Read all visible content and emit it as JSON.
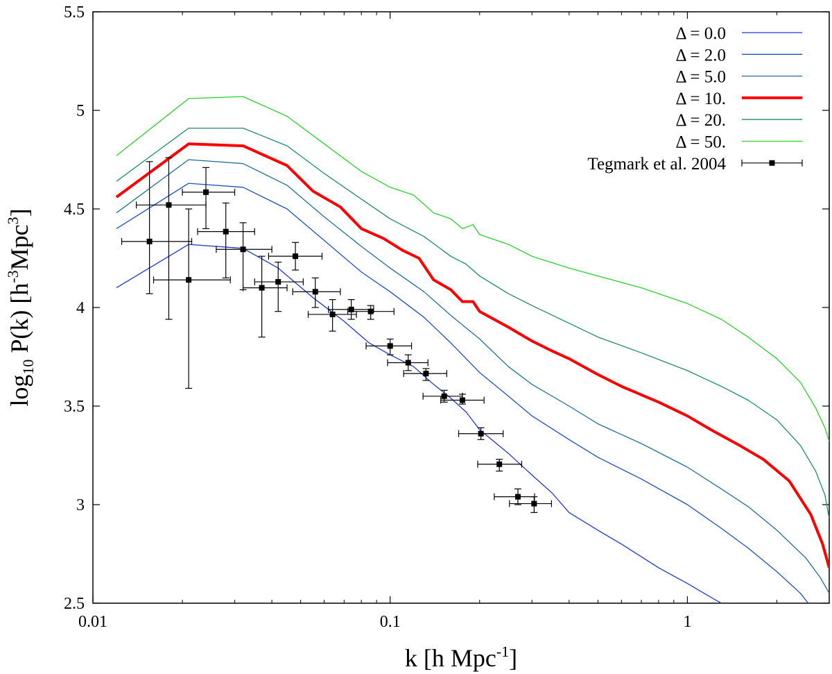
{
  "chart_data": {
    "type": "line",
    "xlabel_main": "k [h Mpc",
    "xlabel_sup": "-1",
    "xlabel_end": "]",
    "ylabel_a": "log",
    "ylabel_sub": "10",
    "ylabel_b": " P(k) [h",
    "ylabel_sup1": "-3",
    "ylabel_c": "Mpc",
    "ylabel_sup2": "3",
    "ylabel_d": "]",
    "x_scale": "log",
    "xlim": [
      0.01,
      3.0
    ],
    "ylim": [
      2.5,
      5.5
    ],
    "x_ticks": [
      {
        "value": 0.01,
        "label": "0.01"
      },
      {
        "value": 0.1,
        "label": "0.1"
      },
      {
        "value": 1,
        "label": "1"
      }
    ],
    "y_ticks": [
      {
        "value": 2.5,
        "label": "2.5"
      },
      {
        "value": 3.0,
        "label": "3"
      },
      {
        "value": 3.5,
        "label": "3.5"
      },
      {
        "value": 4.0,
        "label": "4"
      },
      {
        "value": 4.5,
        "label": "4.5"
      },
      {
        "value": 5.0,
        "label": "5"
      },
      {
        "value": 5.5,
        "label": "5.5"
      }
    ],
    "grid": false,
    "legend_position": "top-right",
    "series": [
      {
        "name": "Δ = 0.0",
        "color": "#1f35d6",
        "width": 1.3,
        "points": [
          [
            0.012,
            4.1
          ],
          [
            0.021,
            4.32
          ],
          [
            0.032,
            4.3
          ],
          [
            0.042,
            4.2
          ],
          [
            0.055,
            4.05
          ],
          [
            0.07,
            3.93
          ],
          [
            0.085,
            3.82
          ],
          [
            0.1,
            3.76
          ],
          [
            0.12,
            3.7
          ],
          [
            0.14,
            3.61
          ],
          [
            0.16,
            3.54
          ],
          [
            0.18,
            3.47
          ],
          [
            0.2,
            3.38
          ],
          [
            0.25,
            3.26
          ],
          [
            0.3,
            3.15
          ],
          [
            0.35,
            3.06
          ],
          [
            0.4,
            2.96
          ],
          [
            0.5,
            2.87
          ],
          [
            0.6,
            2.8
          ],
          [
            0.8,
            2.68
          ],
          [
            1.0,
            2.6
          ],
          [
            1.2,
            2.53
          ],
          [
            1.3,
            2.5
          ]
        ]
      },
      {
        "name": "Δ = 2.0",
        "color": "#1d4ec2",
        "width": 1.3,
        "points": [
          [
            0.012,
            4.4
          ],
          [
            0.021,
            4.63
          ],
          [
            0.032,
            4.61
          ],
          [
            0.045,
            4.5
          ],
          [
            0.06,
            4.34
          ],
          [
            0.08,
            4.18
          ],
          [
            0.1,
            4.08
          ],
          [
            0.13,
            3.95
          ],
          [
            0.16,
            3.82
          ],
          [
            0.2,
            3.67
          ],
          [
            0.25,
            3.55
          ],
          [
            0.3,
            3.45
          ],
          [
            0.4,
            3.33
          ],
          [
            0.5,
            3.24
          ],
          [
            0.7,
            3.13
          ],
          [
            1.0,
            3.0
          ],
          [
            1.3,
            2.88
          ],
          [
            1.6,
            2.78
          ],
          [
            2.0,
            2.66
          ],
          [
            2.4,
            2.55
          ],
          [
            2.55,
            2.5
          ]
        ]
      },
      {
        "name": "Δ = 5.0",
        "color": "#206f9a",
        "width": 1.3,
        "points": [
          [
            0.012,
            4.48
          ],
          [
            0.021,
            4.75
          ],
          [
            0.032,
            4.73
          ],
          [
            0.045,
            4.62
          ],
          [
            0.06,
            4.46
          ],
          [
            0.08,
            4.31
          ],
          [
            0.1,
            4.2
          ],
          [
            0.13,
            4.08
          ],
          [
            0.16,
            3.96
          ],
          [
            0.2,
            3.84
          ],
          [
            0.25,
            3.7
          ],
          [
            0.3,
            3.61
          ],
          [
            0.4,
            3.5
          ],
          [
            0.5,
            3.41
          ],
          [
            0.7,
            3.31
          ],
          [
            1.0,
            3.19
          ],
          [
            1.3,
            3.08
          ],
          [
            1.6,
            2.99
          ],
          [
            2.0,
            2.87
          ],
          [
            2.5,
            2.73
          ],
          [
            2.8,
            2.63
          ],
          [
            3.0,
            2.55
          ]
        ]
      },
      {
        "name": "Δ = 10.",
        "color": "#ff0000",
        "width": 4,
        "points": [
          [
            0.012,
            4.56
          ],
          [
            0.021,
            4.83
          ],
          [
            0.032,
            4.82
          ],
          [
            0.045,
            4.72
          ],
          [
            0.055,
            4.59
          ],
          [
            0.068,
            4.51
          ],
          [
            0.08,
            4.4
          ],
          [
            0.095,
            4.35
          ],
          [
            0.11,
            4.29
          ],
          [
            0.125,
            4.25
          ],
          [
            0.14,
            4.14
          ],
          [
            0.16,
            4.09
          ],
          [
            0.175,
            4.03
          ],
          [
            0.19,
            4.03
          ],
          [
            0.2,
            3.98
          ],
          [
            0.25,
            3.9
          ],
          [
            0.3,
            3.83
          ],
          [
            0.35,
            3.78
          ],
          [
            0.4,
            3.74
          ],
          [
            0.5,
            3.66
          ],
          [
            0.6,
            3.6
          ],
          [
            0.8,
            3.52
          ],
          [
            1.0,
            3.45
          ],
          [
            1.2,
            3.38
          ],
          [
            1.5,
            3.3
          ],
          [
            1.8,
            3.23
          ],
          [
            2.2,
            3.12
          ],
          [
            2.6,
            2.95
          ],
          [
            2.85,
            2.8
          ],
          [
            3.0,
            2.68
          ]
        ]
      },
      {
        "name": "Δ = 20.",
        "color": "#1d8a6e",
        "width": 1.3,
        "points": [
          [
            0.012,
            4.64
          ],
          [
            0.021,
            4.91
          ],
          [
            0.032,
            4.91
          ],
          [
            0.045,
            4.82
          ],
          [
            0.06,
            4.68
          ],
          [
            0.08,
            4.55
          ],
          [
            0.1,
            4.45
          ],
          [
            0.13,
            4.36
          ],
          [
            0.16,
            4.26
          ],
          [
            0.18,
            4.22
          ],
          [
            0.2,
            4.16
          ],
          [
            0.25,
            4.07
          ],
          [
            0.3,
            4.01
          ],
          [
            0.4,
            3.92
          ],
          [
            0.5,
            3.85
          ],
          [
            0.7,
            3.77
          ],
          [
            1.0,
            3.68
          ],
          [
            1.3,
            3.6
          ],
          [
            1.6,
            3.53
          ],
          [
            2.0,
            3.43
          ],
          [
            2.4,
            3.3
          ],
          [
            2.7,
            3.17
          ],
          [
            2.9,
            3.05
          ],
          [
            3.0,
            2.93
          ]
        ]
      },
      {
        "name": "Δ = 50.",
        "color": "#2ad12a",
        "width": 1.3,
        "points": [
          [
            0.012,
            4.77
          ],
          [
            0.021,
            5.06
          ],
          [
            0.032,
            5.07
          ],
          [
            0.045,
            4.97
          ],
          [
            0.06,
            4.83
          ],
          [
            0.08,
            4.69
          ],
          [
            0.1,
            4.61
          ],
          [
            0.12,
            4.57
          ],
          [
            0.14,
            4.48
          ],
          [
            0.16,
            4.45
          ],
          [
            0.175,
            4.4
          ],
          [
            0.19,
            4.42
          ],
          [
            0.2,
            4.37
          ],
          [
            0.25,
            4.32
          ],
          [
            0.3,
            4.26
          ],
          [
            0.4,
            4.2
          ],
          [
            0.5,
            4.16
          ],
          [
            0.7,
            4.1
          ],
          [
            1.0,
            4.02
          ],
          [
            1.3,
            3.94
          ],
          [
            1.6,
            3.85
          ],
          [
            2.0,
            3.74
          ],
          [
            2.4,
            3.62
          ],
          [
            2.7,
            3.49
          ],
          [
            2.9,
            3.39
          ],
          [
            3.0,
            3.32
          ]
        ]
      }
    ],
    "data_series": {
      "name": "Tegmark et al. 2004",
      "color": "#000000",
      "points": [
        {
          "k": 0.0155,
          "y": 4.335,
          "kerr": [
            0.0125,
            0.0215
          ],
          "yerr": [
            4.07,
            4.74
          ]
        },
        {
          "k": 0.018,
          "y": 4.52,
          "kerr": [
            0.014,
            0.024
          ],
          "yerr": [
            3.94,
            4.76
          ]
        },
        {
          "k": 0.021,
          "y": 4.14,
          "kerr": [
            0.016,
            0.029
          ],
          "yerr": [
            3.59,
            4.5
          ]
        },
        {
          "k": 0.024,
          "y": 4.585,
          "kerr": [
            0.02,
            0.03
          ],
          "yerr": [
            4.4,
            4.71
          ]
        },
        {
          "k": 0.028,
          "y": 4.385,
          "kerr": [
            0.0225,
            0.035
          ],
          "yerr": [
            4.15,
            4.53
          ]
        },
        {
          "k": 0.032,
          "y": 4.295,
          "kerr": [
            0.026,
            0.04
          ],
          "yerr": [
            4.09,
            4.43
          ]
        },
        {
          "k": 0.037,
          "y": 4.1,
          "kerr": [
            0.032,
            0.045
          ],
          "yerr": [
            3.85,
            4.26
          ]
        },
        {
          "k": 0.042,
          "y": 4.13,
          "kerr": [
            0.035,
            0.051
          ],
          "yerr": [
            3.98,
            4.23
          ]
        },
        {
          "k": 0.048,
          "y": 4.26,
          "kerr": [
            0.039,
            0.059
          ],
          "yerr": [
            4.19,
            4.33
          ]
        },
        {
          "k": 0.056,
          "y": 4.08,
          "kerr": [
            0.047,
            0.068
          ],
          "yerr": [
            4.0,
            4.15
          ]
        },
        {
          "k": 0.064,
          "y": 3.965,
          "kerr": [
            0.053,
            0.077
          ],
          "yerr": [
            3.88,
            4.04
          ]
        },
        {
          "k": 0.074,
          "y": 3.99,
          "kerr": [
            0.062,
            0.088
          ],
          "yerr": [
            3.94,
            4.04
          ]
        },
        {
          "k": 0.086,
          "y": 3.98,
          "kerr": [
            0.072,
            0.103
          ],
          "yerr": [
            3.94,
            4.01
          ]
        },
        {
          "k": 0.1,
          "y": 3.805,
          "kerr": [
            0.083,
            0.118
          ],
          "yerr": [
            3.76,
            3.84
          ]
        },
        {
          "k": 0.115,
          "y": 3.72,
          "kerr": [
            0.098,
            0.134
          ],
          "yerr": [
            3.68,
            3.76
          ]
        },
        {
          "k": 0.132,
          "y": 3.665,
          "kerr": [
            0.111,
            0.155
          ],
          "yerr": [
            3.63,
            3.69
          ]
        },
        {
          "k": 0.152,
          "y": 3.55,
          "kerr": [
            0.129,
            0.175
          ],
          "yerr": [
            3.52,
            3.58
          ]
        },
        {
          "k": 0.175,
          "y": 3.53,
          "kerr": [
            0.148,
            0.207
          ],
          "yerr": [
            3.51,
            3.56
          ]
        },
        {
          "k": 0.202,
          "y": 3.36,
          "kerr": [
            0.17,
            0.24
          ],
          "yerr": [
            3.33,
            3.39
          ]
        },
        {
          "k": 0.233,
          "y": 3.205,
          "kerr": [
            0.197,
            0.277
          ],
          "yerr": [
            3.17,
            3.23
          ]
        },
        {
          "k": 0.269,
          "y": 3.04,
          "kerr": [
            0.224,
            0.306
          ],
          "yerr": [
            3.0,
            3.08
          ]
        },
        {
          "k": 0.305,
          "y": 3.005,
          "kerr": [
            0.252,
            0.349
          ],
          "yerr": [
            2.96,
            3.04
          ]
        }
      ]
    }
  }
}
